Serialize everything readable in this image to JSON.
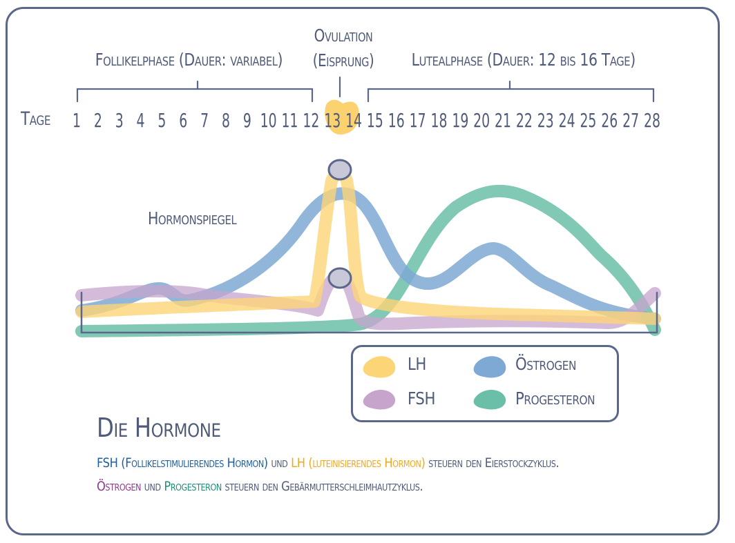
{
  "phases": {
    "follicular": "Follikelphase (Dauer: variabel)",
    "ovulation_line1": "Ovulation",
    "ovulation_line2": "(Eisprung)",
    "luteal": "Lutealphase (Dauer: 12 bis 16 Tage)"
  },
  "axis": {
    "label": "Tage",
    "days": [
      "1",
      "2",
      "3",
      "4",
      "5",
      "6",
      "7",
      "8",
      "9",
      "10",
      "11",
      "12",
      "13",
      "14",
      "15",
      "16",
      "17",
      "18",
      "19",
      "20",
      "21",
      "22",
      "23",
      "24",
      "25",
      "26",
      "27",
      "28"
    ],
    "highlight_day": "14",
    "highlight_color": "#fcd270"
  },
  "chart_label": "Hormonspiegel",
  "legend": {
    "lh": "LH",
    "oestrogen": "Östrogen",
    "fsh": "FSH",
    "progesteron": "Progesteron"
  },
  "colors": {
    "lh": "#fcd577",
    "oestrogen": "#7ea9d4",
    "fsh": "#c6a4cc",
    "progesteron": "#6bbfa8",
    "frame": "#5a6788",
    "text": "#4f5b78"
  },
  "section": {
    "title": "Die Hormone",
    "p1_fsh": "FSH (Follikelstimulierendes Hormon)",
    "p1_und": " und ",
    "p1_lh": "LH (luteinisierendes Hormon)",
    "p1_rest": " steuern den Eierstockzyklus.",
    "p2_oes": "Östrogen",
    "p2_und": " und ",
    "p2_prog": "Progesteron",
    "p2_rest": " steuern den Gebärmutterschleimhautzyklus."
  }
}
